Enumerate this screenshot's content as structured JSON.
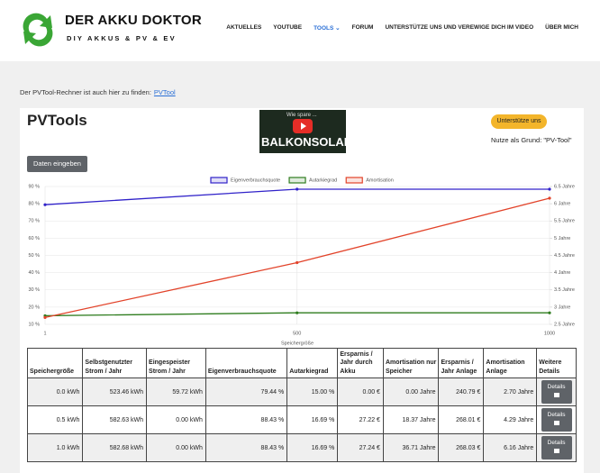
{
  "header": {
    "brand": "DER AKKU DOKTOR",
    "tagline": "DIY AKKUS & PV & EV"
  },
  "nav": [
    "AKTUELLES",
    "YOUTUBE",
    "TOOLS",
    "FORUM",
    "UNTERSTÜTZE UNS UND VEREWIGE DICH IM VIDEO",
    "ÜBER MICH"
  ],
  "intro": {
    "text": "Der PVTool-Rechner ist auch hier zu finden:",
    "link": "PVTool"
  },
  "tool": {
    "title": "PVTools",
    "video_title": "Wie spare ...",
    "video_caption": "BALKONSOLAR",
    "support_button": "Unterstütze uns",
    "support_note": "Nutze als Grund: \"PV-Tool\"",
    "data_button": "Daten eingeben"
  },
  "chart_data": {
    "type": "line",
    "x": [
      1,
      500,
      1000
    ],
    "xlim": [
      1,
      1000
    ],
    "xticks": [
      1,
      500,
      1000
    ],
    "xlabel": "Speichergröße",
    "ylim": [
      10,
      90
    ],
    "yticks": [
      {
        "value": 10,
        "label": "10 %"
      },
      {
        "value": 20,
        "label": "20 %"
      },
      {
        "value": 30,
        "label": "30 %"
      },
      {
        "value": 40,
        "label": "40 %"
      },
      {
        "value": 50,
        "label": "50 %"
      },
      {
        "value": 60,
        "label": "60 %"
      },
      {
        "value": 70,
        "label": "70 %"
      },
      {
        "value": 80,
        "label": "80 %"
      },
      {
        "value": 90,
        "label": "90 %"
      }
    ],
    "y2lim": [
      2.5,
      6.5
    ],
    "y2ticks": [
      {
        "value": 2.5,
        "label": "2.5 Jahre"
      },
      {
        "value": 3,
        "label": "3 Jahre"
      },
      {
        "value": 3.5,
        "label": "3.5 Jahre"
      },
      {
        "value": 4,
        "label": "4 Jahre"
      },
      {
        "value": 4.5,
        "label": "4.5 Jahre"
      },
      {
        "value": 5,
        "label": "5 Jahre"
      },
      {
        "value": 5.5,
        "label": "5.5 Jahre"
      },
      {
        "value": 6,
        "label": "6 Jahre"
      },
      {
        "value": 6.5,
        "label": "6.5 Jahre"
      }
    ],
    "grid": true,
    "legend": "top",
    "series": [
      {
        "name": "Eigenverbrauchsquote",
        "color": "#3022c9",
        "values": [
          79.44,
          88.43,
          88.43
        ]
      },
      {
        "name": "Autarkiegrad",
        "color": "#2f7d1f",
        "values": [
          15.0,
          16.69,
          16.69
        ]
      },
      {
        "name": "Amortisation",
        "color": "#e2432a",
        "values": [
          2.7,
          4.29,
          6.16
        ],
        "axis": "y2"
      }
    ]
  },
  "table": {
    "headers": [
      "Speichergröße",
      "Selbstgenutzter Strom / Jahr",
      "Eingespeister Strom / Jahr",
      "Eigenverbrauchsquote",
      "Autarkiegrad",
      "Ersparnis / Jahr durch Akku",
      "Amortisation nur Speicher",
      "Ersparnis / Jahr Anlage",
      "Amortisation Anlage",
      "Weitere Details"
    ],
    "rows": [
      [
        "0.0 kWh",
        "523.46 kWh",
        "59.72 kWh",
        "79.44 %",
        "15.00 %",
        "0.00 €",
        "0.00 Jahre",
        "240.79 €",
        "2.70 Jahre",
        "Details"
      ],
      [
        "0.5 kWh",
        "582.63 kWh",
        "0.00 kWh",
        "88.43 %",
        "16.69 %",
        "27.22 €",
        "18.37 Jahre",
        "268.01 €",
        "4.29 Jahre",
        "Details"
      ],
      [
        "1.0 kWh",
        "582.68 kWh",
        "0.00 kWh",
        "88.43 %",
        "16.69 %",
        "27.24 €",
        "36.71 Jahre",
        "268.03 €",
        "6.16 Jahre",
        "Details"
      ]
    ]
  }
}
